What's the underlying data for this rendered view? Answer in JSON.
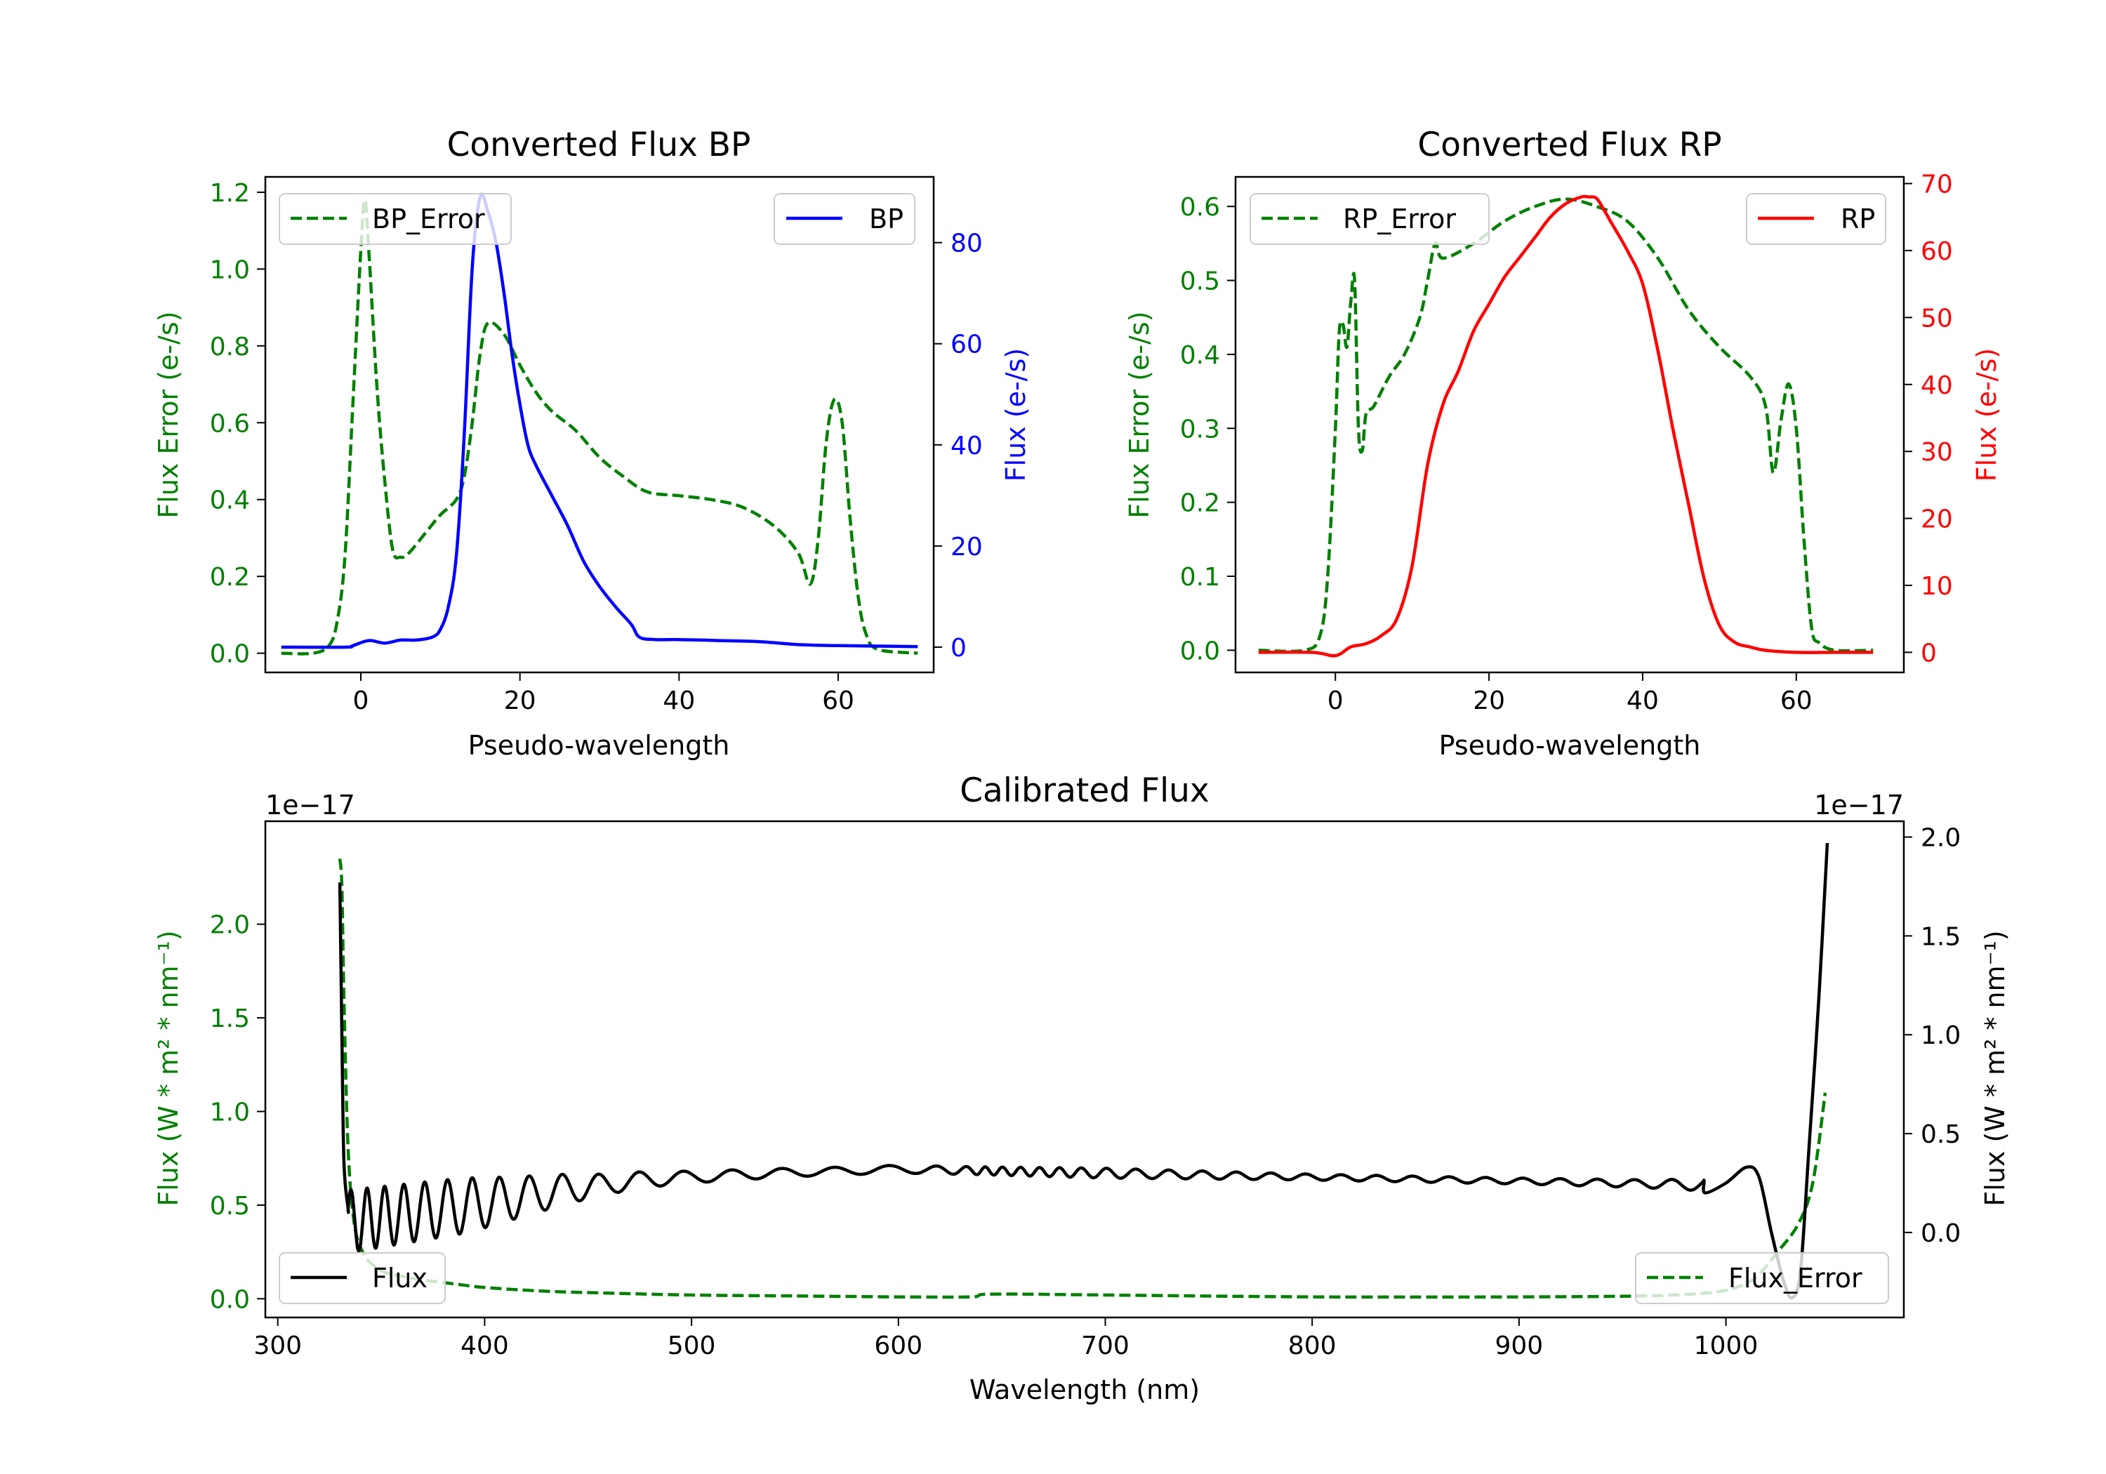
{
  "chart_data": [
    {
      "id": "bp",
      "type": "line",
      "title": "Converted Flux BP",
      "xlabel": "Pseudo-wavelength",
      "ylabel_left": "Flux Error (e-/s)",
      "ylabel_right": "Flux (e-/s)",
      "xlim": [
        -12,
        72
      ],
      "ylim_left": [
        -0.05,
        1.24
      ],
      "ylim_right": [
        -5,
        93
      ],
      "xticks": [
        "0",
        "20",
        "40",
        "60"
      ],
      "yticks_left": [
        "0.0",
        "0.2",
        "0.4",
        "0.6",
        "0.8",
        "1.0",
        "1.2"
      ],
      "yticks_right": [
        "0",
        "20",
        "40",
        "60",
        "80"
      ],
      "legend_left": {
        "label": "BP_Error",
        "placement": "upper-left"
      },
      "legend_right": {
        "label": "BP",
        "placement": "upper-right"
      },
      "series": [
        {
          "name": "BP_Error",
          "axis": "left",
          "style": "dashed",
          "color": "#008000",
          "x": [
            -10,
            -6,
            -4,
            -3,
            -2,
            -1,
            0,
            0.5,
            1,
            2,
            3,
            4,
            5,
            6,
            8,
            10,
            12,
            13,
            14,
            15,
            16,
            18,
            20,
            22,
            24,
            27,
            30,
            33,
            36,
            40,
            44,
            48,
            52,
            55,
            56.5,
            57.5,
            58.5,
            59.5,
            60.5,
            61.5,
            62.5,
            63.5,
            65,
            70
          ],
          "y": [
            0.0,
            0.0,
            0.02,
            0.08,
            0.25,
            0.65,
            1.05,
            1.18,
            1.05,
            0.7,
            0.45,
            0.27,
            0.25,
            0.26,
            0.31,
            0.36,
            0.4,
            0.46,
            0.6,
            0.78,
            0.86,
            0.83,
            0.75,
            0.68,
            0.63,
            0.58,
            0.51,
            0.46,
            0.42,
            0.41,
            0.4,
            0.38,
            0.33,
            0.26,
            0.18,
            0.3,
            0.55,
            0.66,
            0.6,
            0.35,
            0.15,
            0.05,
            0.01,
            0.0
          ]
        },
        {
          "name": "BP",
          "axis": "right",
          "style": "solid",
          "color": "#0000ff",
          "x": [
            -10,
            -2,
            -1,
            1,
            3,
            5,
            7,
            9,
            10,
            11,
            12,
            13,
            14,
            15,
            16,
            17,
            18,
            19,
            20,
            21,
            22,
            24,
            26,
            28,
            30,
            32,
            34,
            35,
            37,
            40,
            45,
            50,
            55,
            60,
            65,
            70
          ],
          "y": [
            0,
            0,
            0.3,
            1.3,
            0.8,
            1.4,
            1.4,
            2.0,
            3.5,
            8,
            18,
            42,
            75,
            89,
            86,
            80,
            70,
            58,
            48,
            40,
            36,
            30,
            24,
            17,
            12,
            8,
            4.5,
            2,
            1.5,
            1.5,
            1.3,
            1.1,
            0.5,
            0.3,
            0.2,
            0.1
          ]
        }
      ]
    },
    {
      "id": "rp",
      "type": "line",
      "title": "Converted Flux RP",
      "xlabel": "Pseudo-wavelength",
      "ylabel_left": "Flux Error (e-/s)",
      "ylabel_right": "Flux (e-/s)",
      "xlim": [
        -13,
        74
      ],
      "ylim_left": [
        -0.03,
        0.64
      ],
      "ylim_right": [
        -3,
        71
      ],
      "xticks": [
        "0",
        "20",
        "40",
        "60"
      ],
      "yticks_left": [
        "0.0",
        "0.1",
        "0.2",
        "0.3",
        "0.4",
        "0.5",
        "0.6"
      ],
      "yticks_right": [
        "0",
        "10",
        "20",
        "30",
        "40",
        "50",
        "60",
        "70"
      ],
      "legend_left": {
        "label": "RP_Error",
        "placement": "upper-left"
      },
      "legend_right": {
        "label": "RP",
        "placement": "upper-right"
      },
      "series": [
        {
          "name": "RP_Error",
          "axis": "left",
          "style": "dashed",
          "color": "#008000",
          "x": [
            -10,
            -4,
            -2,
            -1,
            0,
            0.5,
            1,
            1.5,
            2,
            2.5,
            3,
            3.5,
            4,
            5,
            7,
            9,
            11,
            12,
            13,
            14,
            18,
            22,
            26,
            30,
            34,
            38,
            42,
            46,
            50,
            54,
            56,
            57,
            58,
            59,
            60,
            61,
            62,
            63,
            65,
            70
          ],
          "y": [
            0.0,
            0.0,
            0.02,
            0.1,
            0.3,
            0.43,
            0.44,
            0.41,
            0.47,
            0.5,
            0.3,
            0.27,
            0.32,
            0.33,
            0.37,
            0.4,
            0.45,
            0.5,
            0.55,
            0.53,
            0.55,
            0.58,
            0.6,
            0.61,
            0.6,
            0.58,
            0.53,
            0.46,
            0.41,
            0.37,
            0.33,
            0.24,
            0.31,
            0.36,
            0.3,
            0.15,
            0.03,
            0.01,
            0.0,
            0.0
          ]
        },
        {
          "name": "RP",
          "axis": "right",
          "style": "solid",
          "color": "#ff0000",
          "x": [
            -10,
            -3,
            0,
            2,
            4,
            6,
            8,
            10,
            12,
            14,
            16,
            18,
            20,
            22,
            24,
            26,
            28,
            30,
            32,
            33,
            34,
            35,
            36,
            38,
            40,
            42,
            44,
            46,
            48,
            50,
            52,
            54,
            56,
            60,
            65,
            70
          ],
          "y": [
            0,
            0,
            -0.5,
            0.8,
            1.3,
            2.5,
            5,
            13,
            28,
            37,
            42,
            48,
            52,
            56,
            59,
            62,
            65,
            67,
            68,
            68,
            67.8,
            66,
            64,
            60,
            55,
            45,
            33,
            22,
            11,
            4,
            1.5,
            0.8,
            0.3,
            0,
            0,
            0
          ]
        }
      ]
    },
    {
      "id": "calibrated",
      "type": "line",
      "title": "Calibrated Flux",
      "xlabel": "Wavelength (nm)",
      "ylabel_left": "Flux (W * m² * nm⁻¹)",
      "ylabel_right": "Flux (W * m² * nm⁻¹)",
      "offset_left": "1e−17",
      "offset_right": "1e−17",
      "xlim": [
        294,
        1086
      ],
      "ylim_left": [
        -0.1,
        2.55
      ],
      "ylim_right": [
        -0.43,
        2.08
      ],
      "xticks": [
        "300",
        "400",
        "500",
        "600",
        "700",
        "800",
        "900",
        "1000"
      ],
      "yticks_left": [
        "0.0",
        "0.5",
        "1.0",
        "1.5",
        "2.0"
      ],
      "yticks_right": [
        "0.0",
        "0.5",
        "1.0",
        "1.5",
        "2.0"
      ],
      "legend_left": {
        "label": "Flux",
        "placement": "lower-left"
      },
      "legend_right": {
        "label": "Flux_Error",
        "placement": "lower-right"
      },
      "series": [
        {
          "name": "Flux_Error",
          "axis": "left",
          "style": "dashed",
          "color": "#008000",
          "x": [
            330,
            331,
            332,
            334,
            337,
            341,
            346,
            352,
            360,
            370,
            385,
            400,
            430,
            460,
            500,
            550,
            600,
            635,
            645,
            700,
            800,
            900,
            960,
            990,
            1005,
            1015,
            1025,
            1035,
            1042,
            1048
          ],
          "y": [
            2.35,
            2.2,
            1.6,
            0.8,
            0.4,
            0.25,
            0.18,
            0.14,
            0.12,
            0.1,
            0.08,
            0.06,
            0.04,
            0.03,
            0.02,
            0.015,
            0.01,
            0.01,
            0.025,
            0.02,
            0.01,
            0.01,
            0.015,
            0.03,
            0.06,
            0.12,
            0.25,
            0.4,
            0.62,
            1.1
          ]
        },
        {
          "name": "Flux",
          "axis": "right",
          "style": "solid",
          "color": "#000000",
          "x_range": [
            330,
            1049
          ],
          "baseline": [
            [
              330,
              0.05
            ],
            [
              400,
              0.15
            ],
            [
              440,
              0.22
            ],
            [
              480,
              0.27
            ],
            [
              540,
              0.3
            ],
            [
              600,
              0.32
            ],
            [
              700,
              0.3
            ],
            [
              800,
              0.28
            ],
            [
              900,
              0.26
            ],
            [
              990,
              0.24
            ]
          ],
          "envelope": [
            [
              330,
              0.16
            ],
            [
              360,
              0.15
            ],
            [
              390,
              0.14
            ],
            [
              420,
              0.1
            ],
            [
              460,
              0.05
            ],
            [
              500,
              0.03
            ],
            [
              560,
              0.02
            ],
            [
              640,
              0.02
            ],
            [
              700,
              0.025
            ],
            [
              800,
              0.015
            ],
            [
              900,
              0.015
            ],
            [
              960,
              0.02
            ],
            [
              990,
              0.03
            ]
          ],
          "period": [
            [
              330,
              7
            ],
            [
              400,
              13
            ],
            [
              450,
              18
            ],
            [
              500,
              23
            ],
            [
              600,
              27
            ],
            [
              640,
              8
            ],
            [
              680,
              10
            ],
            [
              720,
              16
            ],
            [
              800,
              17
            ],
            [
              900,
              18
            ],
            [
              990,
              18
            ]
          ],
          "tail": [
            [
              990,
              0.2
            ],
            [
              1000,
              0.25
            ],
            [
              1010,
              0.33
            ],
            [
              1016,
              0.28
            ],
            [
              1022,
              0.0
            ],
            [
              1028,
              -0.25
            ],
            [
              1032,
              -0.33
            ],
            [
              1036,
              -0.2
            ],
            [
              1040,
              0.4
            ],
            [
              1045,
              1.2
            ],
            [
              1049,
              1.97
            ]
          ],
          "spike": [
            [
              330,
              1.77
            ],
            [
              331,
              1.0
            ],
            [
              332,
              0.35
            ],
            [
              334,
              0.12
            ]
          ]
        }
      ]
    }
  ]
}
